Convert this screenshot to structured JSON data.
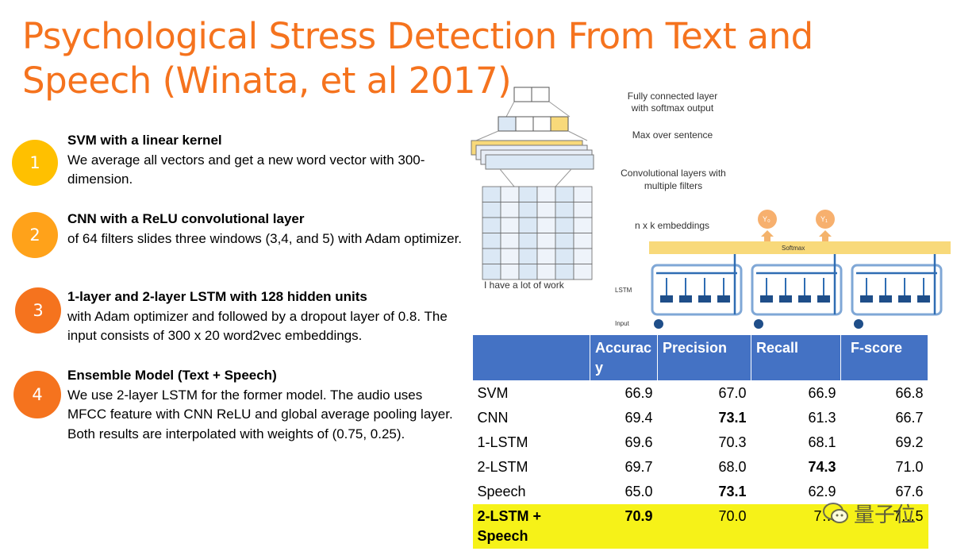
{
  "title": "Psychological Stress Detection From Text and Speech (Winata, et al 2017)",
  "items": [
    {
      "num": "1",
      "head": "SVM with a linear kernel",
      "body": "We average all vectors and get a new word vector with 300-dimension."
    },
    {
      "num": "2",
      "head": "CNN with a ReLU convolutional layer",
      "body": "of 64 filters slides three windows (3,4, and 5) with Adam optimizer."
    },
    {
      "num": "3",
      "head": "1-layer and 2-layer LSTM with 128 hidden units",
      "body": "with Adam optimizer and followed by a dropout layer of 0.8. The input consists of 300 x 20 word2vec embeddings."
    },
    {
      "num": "4",
      "head": "Ensemble Model (Text + Speech)",
      "body": "We use 2-layer LSTM for the former model. The audio uses MFCC feature  with CNN ReLU and global average pooling layer.  Both results are interpolated with weights of (0.75, 0.25)."
    }
  ],
  "circle_colors": [
    "#ffc000",
    "#ffa21a",
    "#f5731e",
    "#f5731e"
  ],
  "diagram": {
    "fc_label": "Fully connected layer with softmax output",
    "fc_line1": "Fully connected layer",
    "fc_line2": "with softmax output",
    "max_label": "Max over sentence",
    "conv_line1": "Convolutional layers with",
    "conv_line2": "multiple filters",
    "embed_label": "n x k embeddings",
    "words": "I  have  a   lot  of work",
    "y0": "Y₀",
    "y1": "Y₁",
    "softmax": "Softmax",
    "lstm": "LSTM",
    "input": "Input"
  },
  "table": {
    "headers": [
      "",
      "Accuracy",
      "Precision",
      "Recall",
      "F-score"
    ],
    "header_accuracy_l1": "Accurac",
    "header_accuracy_l2": "y",
    "rows": [
      {
        "name": "SVM",
        "acc": "66.9",
        "prec": "67.0",
        "rec": "66.9",
        "f": "66.8"
      },
      {
        "name": "CNN",
        "acc": "69.4",
        "prec": "73.1",
        "rec": "61.3",
        "f": "66.7"
      },
      {
        "name": "1-LSTM",
        "acc": "69.6",
        "prec": "70.3",
        "rec": "68.1",
        "f": "69.2"
      },
      {
        "name": "2-LSTM",
        "acc": "69.7",
        "prec": "68.0",
        "rec": "74.3",
        "f": "71.0"
      },
      {
        "name": "Speech",
        "acc": "65.0",
        "prec": "73.1",
        "rec": "62.9",
        "f": "67.6"
      },
      {
        "name": "2-LSTM + Speech",
        "acc": "70.9",
        "prec": "70.0",
        "rec": "7…",
        "f": "7…5"
      }
    ],
    "last_name_l1": "2-LSTM +",
    "last_name_l2": "Speech"
  },
  "watermark": "量子位",
  "colors": {
    "accent": "#f5731e",
    "table_header": "#4472c4",
    "highlight": "#f6f218"
  }
}
